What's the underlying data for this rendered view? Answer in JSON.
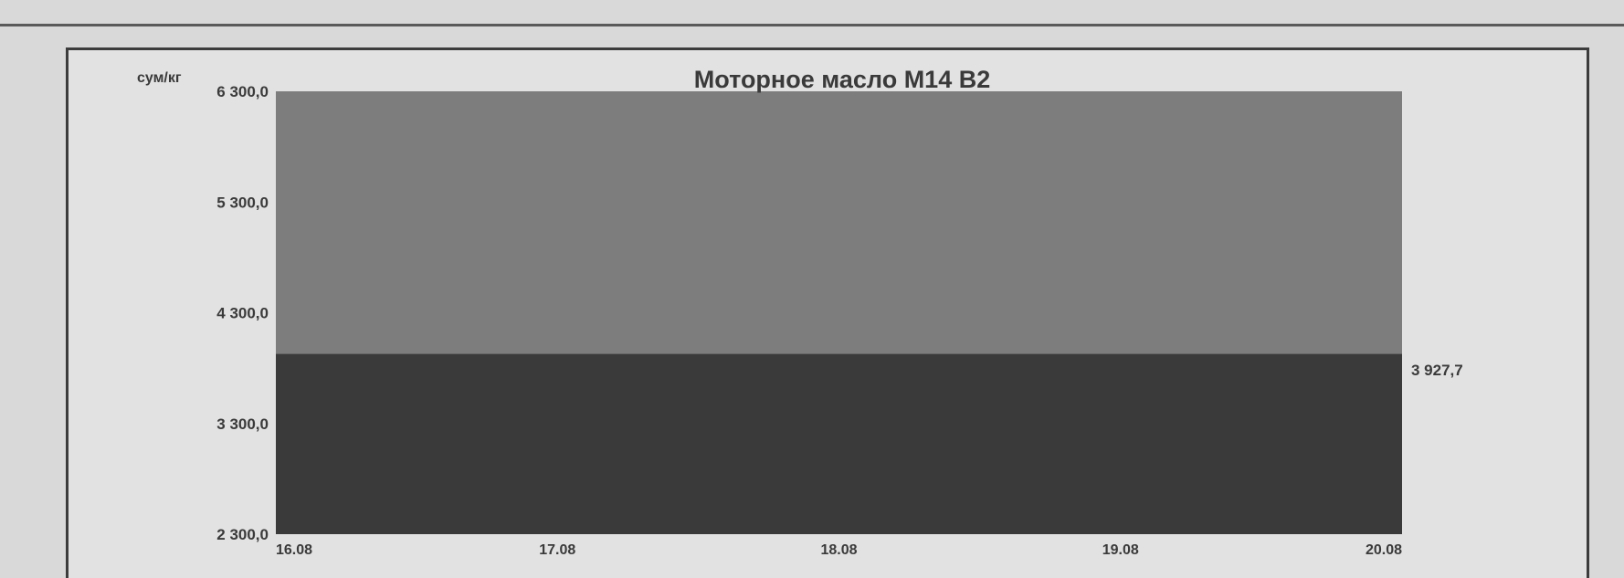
{
  "chart_data": {
    "type": "area",
    "title": "Моторное масло М14 В2",
    "ylabel": "сум/кг",
    "xlabel": "",
    "categories": [
      "16.08",
      "17.08",
      "18.08",
      "19.08",
      "20.08"
    ],
    "y_ticks": [
      "6 300,0",
      "5 300,0",
      "4 300,0",
      "3 300,0",
      "2 300,0"
    ],
    "ylim": [
      2300,
      6300
    ],
    "series": [
      {
        "values": [
          6300,
          6300,
          6300,
          6300,
          6300
        ]
      },
      {
        "values": [
          3927.7,
          3927.7,
          3927.7,
          3927.7,
          3927.7
        ]
      }
    ],
    "end_label": "3 927,7",
    "colors": {
      "background": "#e2e2e2",
      "upper_area": "#7d7d7d",
      "lower_area": "#3a3a3a",
      "text": "#3a3a3a"
    }
  }
}
